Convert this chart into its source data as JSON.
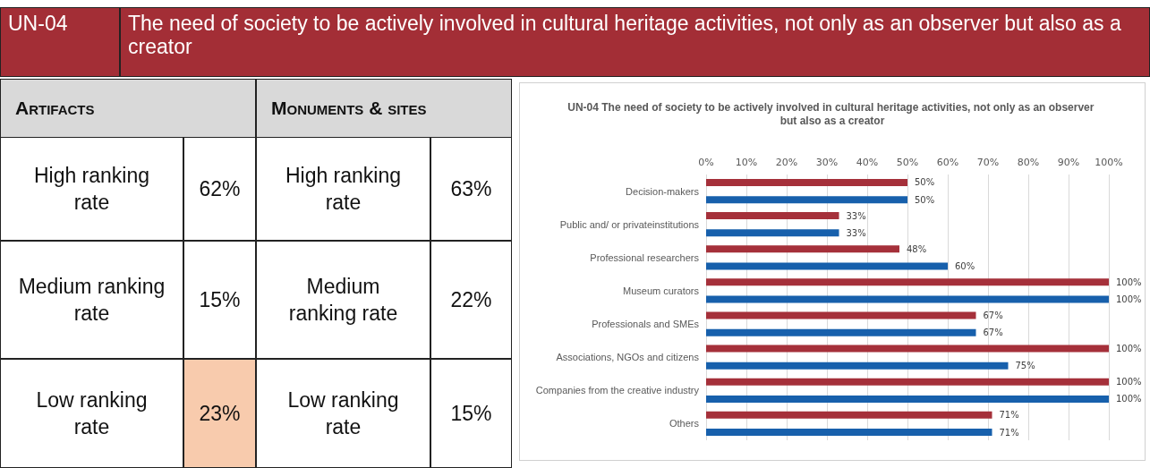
{
  "chart_data": [
    {
      "type": "other",
      "title": "UN-04",
      "subtitle": "The need of society to be actively involved in cultural heritage activities, not only as an observer but also as a creator",
      "annotations": [
        "Artifacts",
        "Monuments & sites",
        "High ranking rate",
        "62%",
        "High ranking rate",
        "63%",
        "Medium ranking rate",
        "15%",
        "Medium ranking rate",
        "22%",
        "Low ranking rate",
        "23%",
        "Low ranking rate",
        "15%"
      ],
      "colors": [
        null,
        null,
        null,
        null,
        "#f8cbad",
        null
      ]
    },
    {
      "type": "bar",
      "orientation": "horizontal",
      "title": "UN-04 The need of society to be actively involved in cultural heritage activities, not only as an observer but also as a creator",
      "categories": [
        "Decision-makers",
        "Public and/ or privateinstitutions",
        "Professional researchers",
        "Museum curators",
        "Professionals and SMEs",
        "Associations, NGOs and citizens",
        "Companies from the creative industry",
        "Others"
      ],
      "series": [
        {
          "color": "#a5303a",
          "values": [
            50,
            33,
            48,
            100,
            67,
            100,
            100,
            71
          ],
          "value_labels": [
            "50%",
            "33%",
            "48%",
            "100%",
            "67%",
            "100%",
            "100%",
            "71%"
          ]
        },
        {
          "color": "#1760ac",
          "values": [
            50,
            33,
            60,
            100,
            67,
            75,
            100,
            71
          ],
          "value_labels": [
            "50%",
            "33%",
            "60%",
            "100%",
            "67%",
            "75%",
            "100%",
            "71%"
          ]
        }
      ],
      "xlim": [
        0,
        100
      ],
      "xticks": [
        {
          "value": 0,
          "label": "0%"
        },
        {
          "value": 10,
          "label": "10%"
        },
        {
          "value": 20,
          "label": "20%"
        },
        {
          "value": 30,
          "label": "30%"
        },
        {
          "value": 40,
          "label": "40%"
        },
        {
          "value": 50,
          "label": "50%"
        },
        {
          "value": 60,
          "label": "60%"
        },
        {
          "value": 70,
          "label": "70%"
        },
        {
          "value": 80,
          "label": "80%"
        },
        {
          "value": 90,
          "label": "90%"
        },
        {
          "value": 100,
          "label": "100%"
        }
      ],
      "grid": "x"
    }
  ]
}
